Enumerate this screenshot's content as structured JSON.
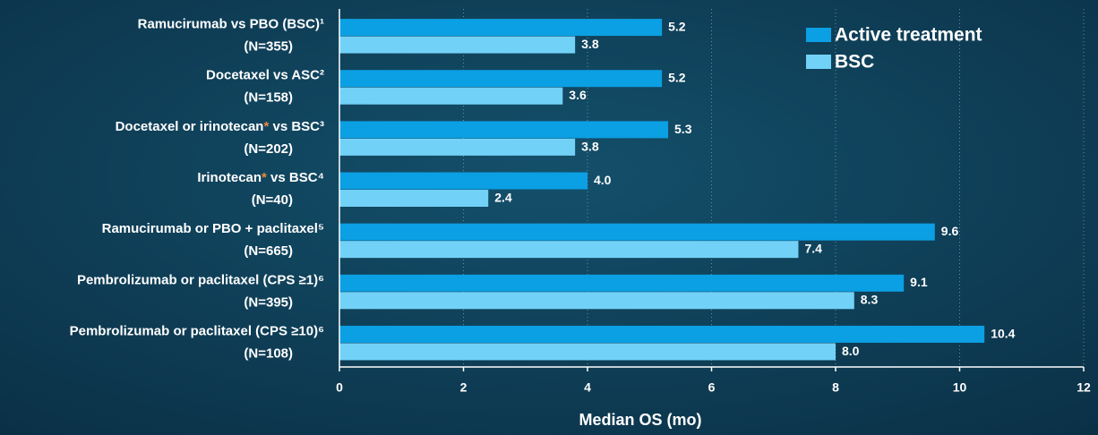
{
  "chart_data": {
    "type": "hbar",
    "categories": [
      "Ramucirumab vs PBO (BSC)¹",
      "Docetaxel vs ASC²",
      "Docetaxel or irinotecan* vs BSC³",
      "Irinotecan* vs BSC⁴",
      "Ramucirumab or PBO + paclitaxel⁵",
      "Pembrolizumab or paclitaxel (CPS ≥1)⁶",
      "Pembrolizumab or paclitaxel (CPS ≥10)⁶"
    ],
    "sample_sizes": [
      "(N=355)",
      "(N=158)",
      "(N=202)",
      "(N=40)",
      "(N=665)",
      "(N=395)",
      "(N=108)"
    ],
    "series": [
      {
        "name": "Active treatment",
        "color": "#0b9fe3",
        "values": [
          5.2,
          5.2,
          5.3,
          4,
          9.6,
          9.1,
          10.4
        ],
        "value_labels": [
          "5.2",
          "5.2",
          "5.3",
          "4.0",
          "9.6",
          "9.1",
          "10.4"
        ]
      },
      {
        "name": "BSC",
        "color": "#72d1f7",
        "values": [
          3.8,
          3.6,
          3.8,
          2.4,
          7.4,
          8.3,
          8
        ],
        "value_labels": [
          "3.8",
          "3.6",
          "3.8",
          "2.4",
          "7.4",
          "8.3",
          "8.0"
        ]
      }
    ],
    "xlabel": "Median OS (mo)",
    "xlim": [
      0,
      12
    ],
    "xticks": [
      0,
      2,
      4,
      6,
      8,
      10,
      12
    ],
    "grid": true,
    "legend": "upper right"
  }
}
